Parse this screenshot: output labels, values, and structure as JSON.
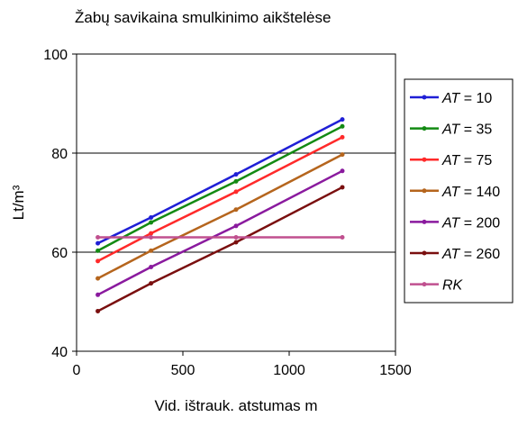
{
  "chart_data": {
    "type": "line",
    "title": "Žabų savikaina smulkinimo aikštelėse",
    "xlabel": "Vid. ištrauk. atstumas m",
    "ylabel": "Lt/m³",
    "xlim": [
      0,
      1500
    ],
    "ylim": [
      40,
      100
    ],
    "xticks": [
      "0",
      "500",
      "1000",
      "1500"
    ],
    "yticks": [
      "40",
      "60",
      "80",
      "100"
    ],
    "grid": "horizontal at 60 and 80",
    "legend_position": "right",
    "series": [
      {
        "prefix": "AT",
        "suffix": " = 10",
        "color": "#1f1fd6",
        "points": [
          [
            100,
            61.8
          ],
          [
            350,
            67.0
          ],
          [
            750,
            75.7
          ],
          [
            1250,
            86.8
          ]
        ]
      },
      {
        "prefix": "AT",
        "suffix": " = 35",
        "color": "#138a13",
        "points": [
          [
            100,
            60.3
          ],
          [
            350,
            66.0
          ],
          [
            750,
            74.3
          ],
          [
            1250,
            85.4
          ]
        ]
      },
      {
        "prefix": "AT",
        "suffix": " = 75",
        "color": "#ff2a2a",
        "points": [
          [
            100,
            58.2
          ],
          [
            350,
            63.8
          ],
          [
            750,
            72.2
          ],
          [
            1250,
            83.2
          ]
        ]
      },
      {
        "prefix": "AT",
        "suffix": " = 140",
        "color": "#b5651d",
        "points": [
          [
            100,
            54.7
          ],
          [
            350,
            60.3
          ],
          [
            750,
            68.6
          ],
          [
            1250,
            79.7
          ]
        ]
      },
      {
        "prefix": "AT",
        "suffix": " = 200",
        "color": "#8a1a9e",
        "points": [
          [
            100,
            51.4
          ],
          [
            350,
            57.0
          ],
          [
            750,
            65.3
          ],
          [
            1250,
            76.4
          ]
        ]
      },
      {
        "prefix": "AT",
        "suffix": " = 260",
        "color": "#7a0f0f",
        "points": [
          [
            100,
            48.1
          ],
          [
            350,
            53.7
          ],
          [
            750,
            62.0
          ],
          [
            1250,
            73.1
          ]
        ]
      },
      {
        "prefix": "RK",
        "suffix": "",
        "color": "#c0508f",
        "points": [
          [
            100,
            63.0
          ],
          [
            350,
            63.0
          ],
          [
            750,
            63.0
          ],
          [
            1250,
            63.0
          ]
        ]
      }
    ]
  }
}
